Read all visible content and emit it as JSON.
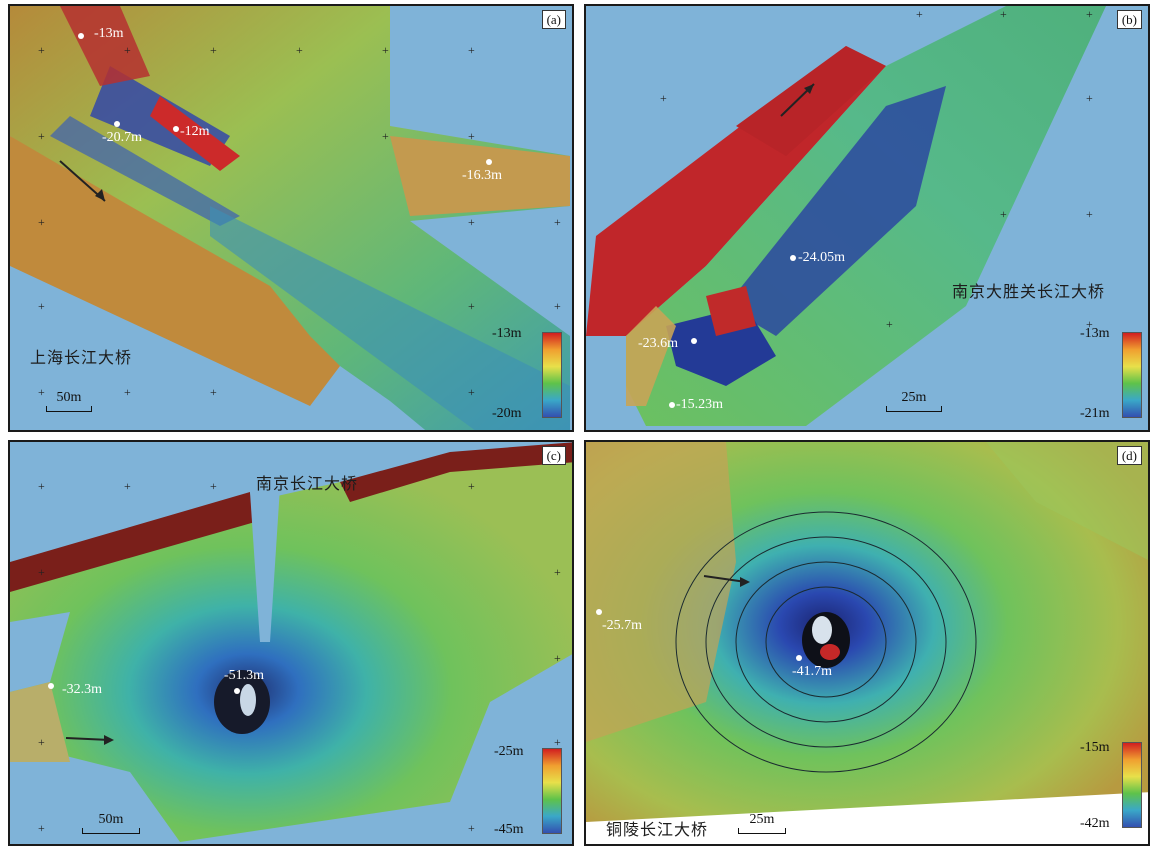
{
  "panels": {
    "a": {
      "tag": "(a)",
      "bridge_name": "上海长江大桥",
      "scale_label": "50m",
      "legend_max": "-13m",
      "legend_min": "-20m",
      "depth_labels": [
        "-13m",
        "-20.7m",
        "-12m",
        "-16.3m"
      ]
    },
    "b": {
      "tag": "(b)",
      "bridge_name": "南京大胜关长江大桥",
      "scale_label": "25m",
      "legend_max": "-13m",
      "legend_min": "-21m",
      "depth_labels": [
        "-24.05m",
        "-23.6m",
        "-15.23m"
      ]
    },
    "c": {
      "tag": "(c)",
      "bridge_name": "南京长江大桥",
      "scale_label": "50m",
      "legend_max": "-25m",
      "legend_min": "-45m",
      "depth_labels": [
        "-51.3m",
        "-32.3m"
      ]
    },
    "d": {
      "tag": "(d)",
      "bridge_name": "铜陵长江大桥",
      "scale_label": "25m",
      "legend_max": "-15m",
      "legend_min": "-42m",
      "depth_labels": [
        "-25.7m",
        "-41.7m"
      ]
    }
  },
  "colors": {
    "water_background": "#7fb3d8",
    "shallow": "#c0392b",
    "mid": "#6dbf4e",
    "deep": "#2a3f9e"
  }
}
